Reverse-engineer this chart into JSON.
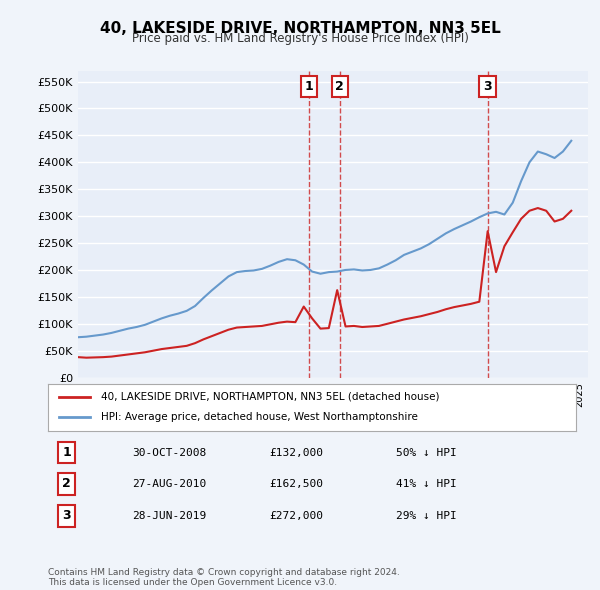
{
  "title": "40, LAKESIDE DRIVE, NORTHAMPTON, NN3 5EL",
  "subtitle": "Price paid vs. HM Land Registry's House Price Index (HPI)",
  "ylabel_ticks": [
    "£0",
    "£50K",
    "£100K",
    "£150K",
    "£200K",
    "£250K",
    "£300K",
    "£350K",
    "£400K",
    "£450K",
    "£500K",
    "£550K"
  ],
  "ytick_values": [
    0,
    50000,
    100000,
    150000,
    200000,
    250000,
    300000,
    350000,
    400000,
    450000,
    500000,
    550000
  ],
  "ylim": [
    0,
    570000
  ],
  "xlim_start": 1995.0,
  "xlim_end": 2025.5,
  "background_color": "#f0f4fa",
  "plot_bg_color": "#e8eef8",
  "grid_color": "#ffffff",
  "hpi_line_color": "#6699cc",
  "price_line_color": "#cc2222",
  "vline_color": "#cc2222",
  "transaction_dates": [
    2008.83,
    2010.65,
    2019.49
  ],
  "transaction_labels": [
    "1",
    "2",
    "3"
  ],
  "transaction_prices": [
    132000,
    162500,
    272000
  ],
  "legend_label_red": "40, LAKESIDE DRIVE, NORTHAMPTON, NN3 5EL (detached house)",
  "legend_label_blue": "HPI: Average price, detached house, West Northamptonshire",
  "table_rows": [
    [
      "1",
      "30-OCT-2008",
      "£132,000",
      "50% ↓ HPI"
    ],
    [
      "2",
      "27-AUG-2010",
      "£162,500",
      "41% ↓ HPI"
    ],
    [
      "3",
      "28-JUN-2019",
      "£272,000",
      "29% ↓ HPI"
    ]
  ],
  "footer": "Contains HM Land Registry data © Crown copyright and database right 2024.\nThis data is licensed under the Open Government Licence v3.0.",
  "hpi_data_x": [
    1995.0,
    1995.5,
    1996.0,
    1996.5,
    1997.0,
    1997.5,
    1998.0,
    1998.5,
    1999.0,
    1999.5,
    2000.0,
    2000.5,
    2001.0,
    2001.5,
    2002.0,
    2002.5,
    2003.0,
    2003.5,
    2004.0,
    2004.5,
    2005.0,
    2005.5,
    2006.0,
    2006.5,
    2007.0,
    2007.5,
    2008.0,
    2008.5,
    2009.0,
    2009.5,
    2010.0,
    2010.5,
    2011.0,
    2011.5,
    2012.0,
    2012.5,
    2013.0,
    2013.5,
    2014.0,
    2014.5,
    2015.0,
    2015.5,
    2016.0,
    2016.5,
    2017.0,
    2017.5,
    2018.0,
    2018.5,
    2019.0,
    2019.5,
    2020.0,
    2020.5,
    2021.0,
    2021.5,
    2022.0,
    2022.5,
    2023.0,
    2023.5,
    2024.0,
    2024.5
  ],
  "hpi_data_y": [
    75000,
    76000,
    78000,
    80000,
    83000,
    87000,
    91000,
    94000,
    98000,
    104000,
    110000,
    115000,
    119000,
    124000,
    133000,
    148000,
    162000,
    175000,
    188000,
    196000,
    198000,
    199000,
    202000,
    208000,
    215000,
    220000,
    218000,
    210000,
    197000,
    193000,
    196000,
    197000,
    200000,
    201000,
    199000,
    200000,
    203000,
    210000,
    218000,
    228000,
    234000,
    240000,
    248000,
    258000,
    268000,
    276000,
    283000,
    290000,
    298000,
    305000,
    308000,
    303000,
    325000,
    365000,
    400000,
    420000,
    415000,
    408000,
    420000,
    440000
  ],
  "price_data_x": [
    1995.0,
    1995.5,
    1996.0,
    1996.5,
    1997.0,
    1997.5,
    1998.0,
    1998.5,
    1999.0,
    1999.5,
    2000.0,
    2000.5,
    2001.0,
    2001.5,
    2002.0,
    2002.5,
    2003.0,
    2003.5,
    2004.0,
    2004.5,
    2005.0,
    2005.5,
    2006.0,
    2006.5,
    2007.0,
    2007.5,
    2008.0,
    2008.5,
    2009.0,
    2009.5,
    2010.0,
    2010.5,
    2011.0,
    2011.5,
    2012.0,
    2012.5,
    2013.0,
    2013.5,
    2014.0,
    2014.5,
    2015.0,
    2015.5,
    2016.0,
    2016.5,
    2017.0,
    2017.5,
    2018.0,
    2018.5,
    2019.0,
    2019.5,
    2020.0,
    2020.5,
    2021.0,
    2021.5,
    2022.0,
    2022.5,
    2023.0,
    2023.5,
    2024.0,
    2024.5
  ],
  "price_data_y": [
    38000,
    37000,
    37500,
    38000,
    39000,
    41000,
    43000,
    45000,
    47000,
    50000,
    53000,
    55000,
    57000,
    59000,
    64000,
    71000,
    77000,
    83000,
    89000,
    93000,
    94000,
    95000,
    96000,
    99000,
    102000,
    104000,
    103000,
    132000,
    110000,
    91000,
    92000,
    162500,
    95000,
    96000,
    94000,
    95000,
    96000,
    100000,
    104000,
    108000,
    111000,
    114000,
    118000,
    122000,
    127000,
    131000,
    134000,
    137000,
    141000,
    272000,
    196000,
    244000,
    270000,
    295000,
    310000,
    315000,
    310000,
    290000,
    295000,
    310000
  ]
}
